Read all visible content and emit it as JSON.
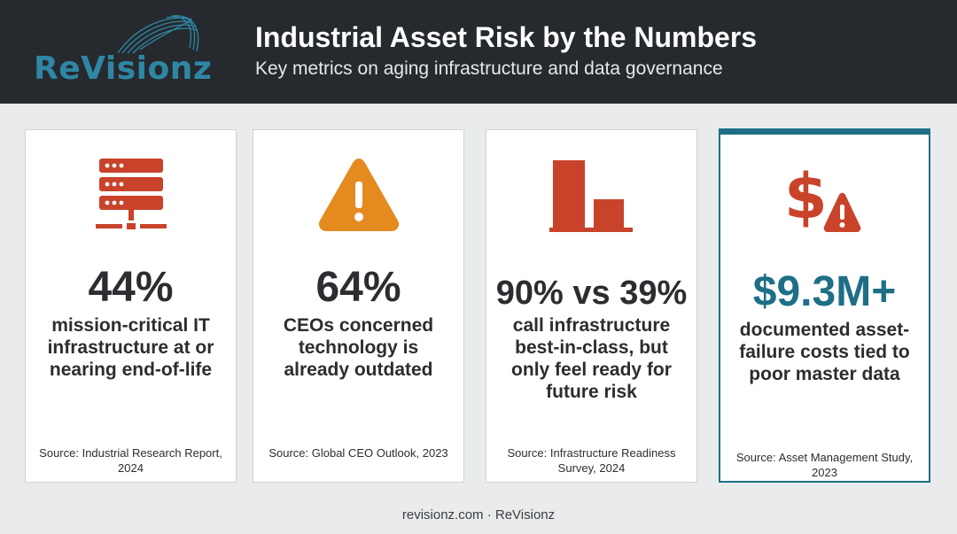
{
  "header": {
    "logo_text": "ReVisionz",
    "title": "Industrial Asset Risk by the Numbers",
    "subtitle": "Key metrics on aging infrastructure and data governance"
  },
  "cards": [
    {
      "icon": "server-rack-icon",
      "stat": "44%",
      "description": "mission-critical IT infrastructure at or nearing end-of-life",
      "source": "Source: Industrial Research Report, 2024"
    },
    {
      "icon": "warning-triangle-icon",
      "stat": "64%",
      "description": "CEOs concerned technology is already outdated",
      "source": "Source: Global CEO Outlook, 2023"
    },
    {
      "icon": "bar-comparison-icon",
      "stat": "90% vs 39%",
      "description": "call infrastructure best-in-class, but only feel ready for future risk",
      "source": "Source: Infrastructure Readiness Survey, 2024"
    },
    {
      "icon": "dollar-warning-icon",
      "stat": "$9.3M+",
      "description": "documented asset-failure costs tied to poor master data",
      "source": "Source: Asset Management Study, 2023"
    }
  ],
  "footer": {
    "text": "revisionz.com · ReVisionz"
  },
  "colors": {
    "header_bg": "#262a2e",
    "accent_red": "#c8432a",
    "accent_orange": "#e58a1f",
    "accent_teal": "#1e6f86",
    "logo_blue": "#2f86a5"
  }
}
